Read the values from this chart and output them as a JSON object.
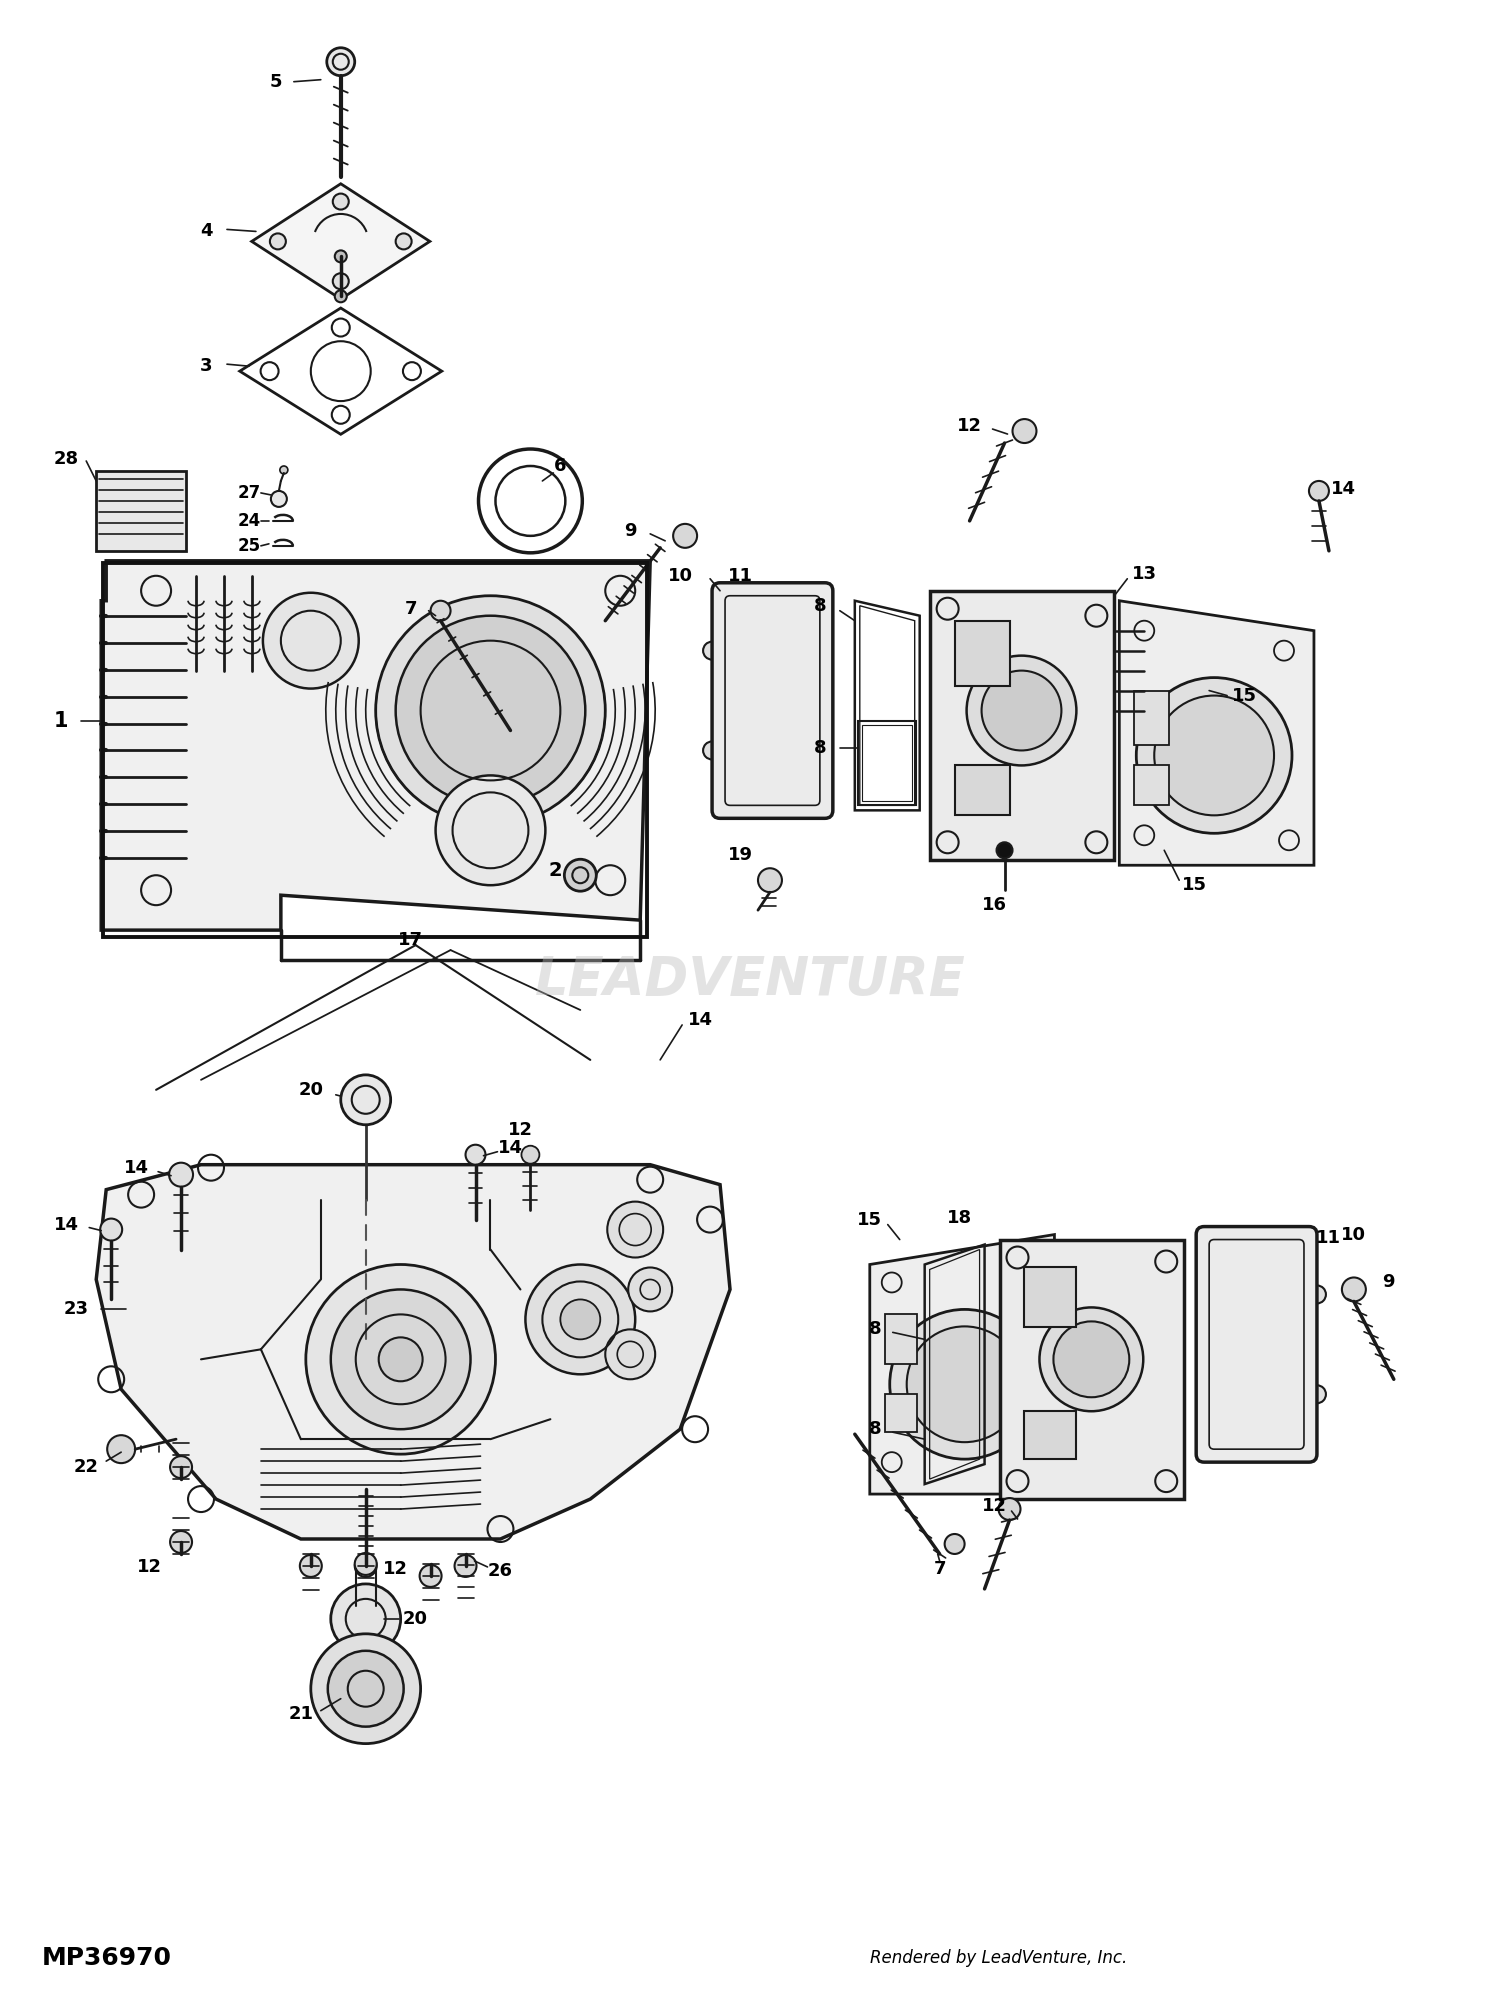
{
  "bg_color": "#ffffff",
  "footer_left": "MP36970",
  "footer_right": "Rendered by LeadVenture, Inc.",
  "watermark": "LEADVENTURE",
  "fig_width": 15.0,
  "fig_height": 19.92,
  "line_color": "#1a1a1a",
  "label_fontsize": 13
}
